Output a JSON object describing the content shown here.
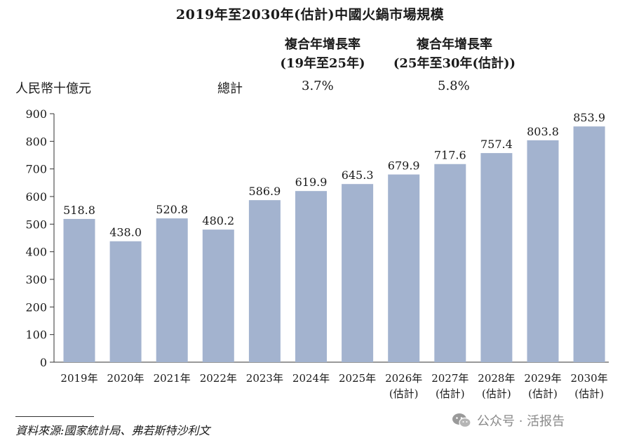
{
  "header": {
    "title": "2019年至2030年(估計)中國火鍋市場規模",
    "cagr_head_1_line1": "複合年增長率",
    "cagr_head_1_line2": "(19年至25年)",
    "cagr_head_2_line1": "複合年增長率",
    "cagr_head_2_line2": "(25年至30年(估計))",
    "unit_label": "人民幣十億元",
    "total_label": "總計",
    "cagr_1_value": "3.7%",
    "cagr_2_value": "5.8%"
  },
  "chart_data": {
    "type": "bar",
    "categories": [
      [
        "2019年"
      ],
      [
        "2020年"
      ],
      [
        "2021年"
      ],
      [
        "2022年"
      ],
      [
        "2023年"
      ],
      [
        "2024年"
      ],
      [
        "2025年"
      ],
      [
        "2026年",
        "(估計)"
      ],
      [
        "2027年",
        "(估計)"
      ],
      [
        "2028年",
        "(估計)"
      ],
      [
        "2029年",
        "(估計)"
      ],
      [
        "2030年",
        "(估計)"
      ]
    ],
    "values": [
      518.8,
      438.0,
      520.8,
      480.2,
      586.9,
      619.9,
      645.3,
      679.9,
      717.6,
      757.4,
      803.8,
      853.9
    ],
    "value_labels": [
      "518.8",
      "438.0",
      "520.8",
      "480.2",
      "586.9",
      "619.9",
      "645.3",
      "679.9",
      "717.6",
      "757.4",
      "803.8",
      "853.9"
    ],
    "y_ticks": [
      0,
      100,
      200,
      300,
      400,
      500,
      600,
      700,
      800,
      900
    ],
    "ylim": [
      0,
      900
    ],
    "grid": false,
    "bar_color": "#a3b3cf",
    "ylabel": "人民幣十億元",
    "xlabel": ""
  },
  "footer": {
    "source": "資料來源:國家統計局、弗若斯特沙利文",
    "watermark": "公众号 · 活报告",
    "watermark_icon": "wechat-icon"
  }
}
